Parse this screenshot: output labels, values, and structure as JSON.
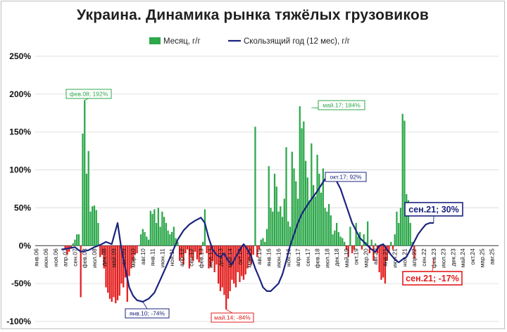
{
  "header": {
    "title": "Украина. Динамика рынка тяжёлых грузовиков"
  },
  "chart_data": {
    "type": "bar+line",
    "title": "Украина. Динамика рынка тяжёлых грузовиков",
    "xlabel": "",
    "ylabel": "",
    "ylim": [
      -1.0,
      2.5
    ],
    "grid": true,
    "legend_position": "top-center",
    "colors": {
      "month_bar_positive": "#2ca84a",
      "month_bar_negative": "#e31d1d",
      "rolling_line": "#1a237e"
    },
    "y_ticks": [
      "250%",
      "200%",
      "150%",
      "100%",
      "50%",
      "0%",
      "-50%",
      "-100%"
    ],
    "x_tick_labels": [
      "янв.06",
      "июн.06",
      "ноя.06",
      "апр.07",
      "сен.07",
      "фев.08",
      "июл.08",
      "дек.08",
      "май.09",
      "окт.09",
      "мар.10",
      "авг.10",
      "янв.11",
      "июн.11",
      "ноя.11",
      "апр.12",
      "сен.12",
      "фев.13",
      "июл.13",
      "дек.13",
      "май.14",
      "окт.14",
      "мар.15",
      "авг.15",
      "янв.16",
      "июн.16",
      "ноя.16",
      "апр.17",
      "сен.17",
      "фев.18",
      "июл.18",
      "дек.18",
      "май.19",
      "окт.19",
      "мар.20",
      "авг.20",
      "янв.21",
      "июн.21",
      "ноя.21",
      "апр.22",
      "сен.22",
      "фев.23",
      "июл.23",
      "дек.23",
      "май.24",
      "окт.24",
      "мар.25",
      "авг.25"
    ],
    "series": [
      {
        "name": "Месяц, г/г",
        "kind": "bar",
        "values": [
          0,
          0,
          0,
          0,
          0,
          0,
          0,
          0,
          0,
          0,
          0,
          0,
          0,
          0,
          0,
          -0.05,
          -0.12,
          -0.08,
          -0.04,
          0.03,
          0.08,
          0.15,
          0.15,
          -0.68,
          1.48,
          1.92,
          0.95,
          1.25,
          0.45,
          0.52,
          0.53,
          0.47,
          0.3,
          -0.15,
          -0.12,
          -0.3,
          -0.55,
          -0.62,
          -0.7,
          -0.74,
          -0.68,
          -0.76,
          -0.72,
          -0.66,
          -0.5,
          -0.55,
          -0.42,
          -0.74,
          -0.4,
          -0.3,
          -0.2,
          -0.12,
          -0.1,
          0,
          0.15,
          0.22,
          0.18,
          0.12,
          0.08,
          0.46,
          0.42,
          0.48,
          0.3,
          0.5,
          0.25,
          0.45,
          0.38,
          0.3,
          0.2,
          0.15,
          0.18,
          0.25,
          0.1,
          0.05,
          -0.2,
          -0.15,
          -0.25,
          -0.1,
          -0.05,
          -0.3,
          -0.15,
          -0.2,
          -0.08,
          -0.18,
          -0.22,
          -0.12,
          0.05,
          0.48,
          -0.1,
          -0.3,
          -0.28,
          -0.2,
          -0.35,
          -0.25,
          -0.5,
          -0.6,
          -0.55,
          -0.65,
          -0.84,
          -0.7,
          -0.6,
          -0.45,
          -0.5,
          -0.55,
          -0.35,
          -0.48,
          -0.4,
          -0.45,
          -0.38,
          -0.3,
          -0.2,
          -0.25,
          -0.12,
          1.57,
          -0.15,
          -0.05,
          0.08,
          0.1,
          0.05,
          0.22,
          1.05,
          0.5,
          0.45,
          0.95,
          0.78,
          0.45,
          0.52,
          0.38,
          0.62,
          1.3,
          0.32,
          0.25,
          1.24,
          1.02,
          0.85,
          0.62,
          1.84,
          1.55,
          1.64,
          1.12,
          0.9,
          0.6,
          1.35,
          0.8,
          0.65,
          1.2,
          0.95,
          0.7,
          1.02,
          0.5,
          0.45,
          0.55,
          0.4,
          0.15,
          0.2,
          0.3,
          0.18,
          0.12,
          0.1,
          0.05,
          -0.05,
          -0.15,
          0.25,
          -0.1,
          -0.05,
          0.3,
          0.12,
          0.18,
          -0.05,
          0.15,
          0.05,
          0.32,
          -0.1,
          0.08,
          -0.2,
          0.03,
          -0.1,
          -0.35,
          -0.45,
          -0.42,
          -0.5,
          -0.2,
          -0.1,
          0.05,
          -0.05,
          0.15,
          0.45,
          0.3,
          0.5,
          1.74,
          1.65,
          0.68,
          0.6,
          0.3,
          0.05,
          -0.17
        ],
        "annotations": [
          "фев.08; 192%",
          "май.14; -84%",
          "май.17; 184%",
          "сен.21; -17%"
        ]
      },
      {
        "name": "Скользящий год (12 мес), г/г",
        "kind": "line",
        "points": [
          [
            13,
            -0.05
          ],
          [
            20,
            -0.02
          ],
          [
            23,
            -0.08
          ],
          [
            27,
            -0.06
          ],
          [
            30,
            -0.02
          ],
          [
            33,
            0.01
          ],
          [
            36,
            0.05
          ],
          [
            39,
            0.02
          ],
          [
            42,
            0.3
          ],
          [
            44,
            -0.05
          ],
          [
            46,
            -0.3
          ],
          [
            48,
            -0.55
          ],
          [
            50,
            -0.66
          ],
          [
            52,
            -0.72
          ],
          [
            55,
            -0.74
          ],
          [
            58,
            -0.7
          ],
          [
            61,
            -0.62
          ],
          [
            64,
            -0.45
          ],
          [
            67,
            -0.28
          ],
          [
            70,
            -0.1
          ],
          [
            73,
            0.08
          ],
          [
            76,
            0.2
          ],
          [
            79,
            0.28
          ],
          [
            82,
            0.33
          ],
          [
            85,
            0.37
          ],
          [
            87,
            0.3
          ],
          [
            89,
            0.1
          ],
          [
            91,
            -0.05
          ],
          [
            93,
            -0.12
          ],
          [
            95,
            -0.15
          ],
          [
            97,
            -0.1
          ],
          [
            99,
            -0.2
          ],
          [
            101,
            -0.25
          ],
          [
            103,
            -0.15
          ],
          [
            105,
            -0.05
          ],
          [
            107,
            0.02
          ],
          [
            109,
            -0.05
          ],
          [
            111,
            -0.15
          ],
          [
            113,
            -0.3
          ],
          [
            115,
            -0.42
          ],
          [
            117,
            -0.55
          ],
          [
            119,
            -0.6
          ],
          [
            121,
            -0.6
          ],
          [
            123,
            -0.55
          ],
          [
            125,
            -0.5
          ],
          [
            127,
            -0.38
          ],
          [
            129,
            -0.2
          ],
          [
            131,
            0.0
          ],
          [
            133,
            0.15
          ],
          [
            135,
            0.3
          ],
          [
            137,
            0.42
          ],
          [
            139,
            0.5
          ],
          [
            141,
            0.58
          ],
          [
            143,
            0.65
          ],
          [
            145,
            0.72
          ],
          [
            147,
            0.8
          ],
          [
            149,
            0.88
          ],
          [
            151,
            0.92
          ],
          [
            153,
            0.9
          ],
          [
            155,
            0.85
          ],
          [
            157,
            0.75
          ],
          [
            159,
            0.6
          ],
          [
            161,
            0.45
          ],
          [
            163,
            0.3
          ],
          [
            165,
            0.2
          ],
          [
            167,
            0.1
          ],
          [
            169,
            0.05
          ],
          [
            171,
            0.0
          ],
          [
            173,
            -0.05
          ],
          [
            175,
            -0.08
          ],
          [
            177,
            0.0
          ],
          [
            179,
            0.02
          ],
          [
            181,
            -0.05
          ],
          [
            183,
            -0.12
          ],
          [
            185,
            -0.18
          ],
          [
            187,
            -0.22
          ],
          [
            189,
            -0.18
          ],
          [
            191,
            -0.15
          ],
          [
            193,
            -0.05
          ],
          [
            195,
            0.05
          ],
          [
            197,
            0.15
          ],
          [
            199,
            0.22
          ],
          [
            201,
            0.28
          ],
          [
            203,
            0.3
          ],
          [
            205,
            0.3
          ]
        ],
        "annotations": [
          "янв.10; -74%",
          "окт.17; 92%",
          "сен.21; 30%"
        ]
      }
    ]
  }
}
